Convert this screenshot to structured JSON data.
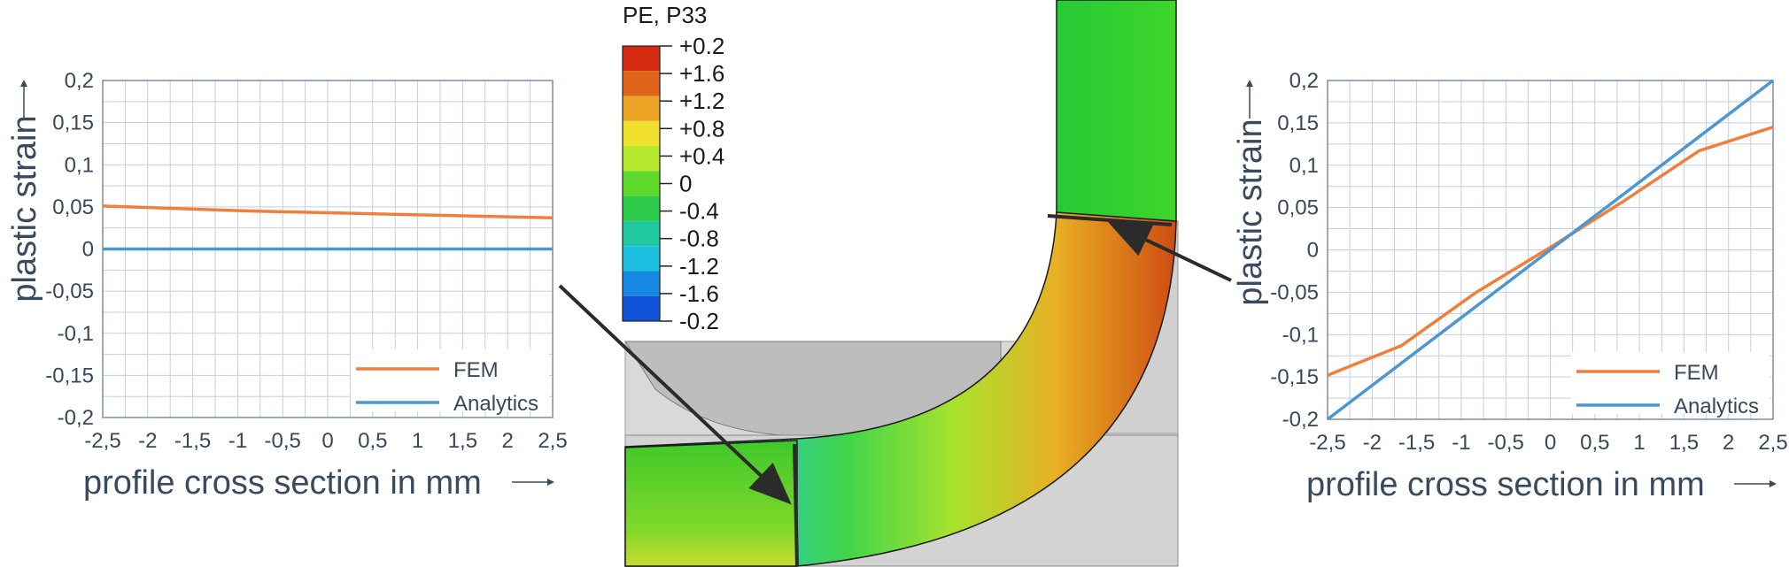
{
  "chart_data": [
    {
      "type": "line",
      "xlabel": "profile cross section in mm",
      "ylabel": "plastic strain",
      "xlim": [
        -2.5,
        2.5
      ],
      "ylim": [
        -0.2,
        0.2
      ],
      "x_ticks": [
        "-2,5",
        "-2",
        "-1,5",
        "-1",
        "-0,5",
        "0",
        "0,5",
        "1",
        "1,5",
        "2",
        "2,5"
      ],
      "y_ticks": [
        "0,2",
        "0,15",
        "0,1",
        "0,05",
        "0",
        "-0,05",
        "-0,1",
        "-0,15",
        "-0,2"
      ],
      "grid": true,
      "legend_position": "bottom-right",
      "series": [
        {
          "name": "FEM",
          "color": "#f07f3c",
          "x": [
            -2.5,
            -1.67,
            -0.83,
            0,
            0.83,
            1.67,
            2.5
          ],
          "y": [
            0.051,
            0.048,
            0.045,
            0.043,
            0.041,
            0.039,
            0.037
          ]
        },
        {
          "name": "Analytics",
          "color": "#4c97cf",
          "x": [
            -2.5,
            2.5
          ],
          "y": [
            0,
            0
          ]
        }
      ]
    },
    {
      "type": "line",
      "xlabel": "profile cross section in mm",
      "ylabel": "plastic strain",
      "xlim": [
        -2.5,
        2.5
      ],
      "ylim": [
        -0.2,
        0.2
      ],
      "x_ticks": [
        "-2,5",
        "-2",
        "-1,5",
        "-1",
        "-0,5",
        "0",
        "0,5",
        "1",
        "1,5",
        "2",
        "2,5"
      ],
      "y_ticks": [
        "0,2",
        "0,15",
        "0,1",
        "0,05",
        "0",
        "-0,05",
        "-0,1",
        "-0,15",
        "-0,2"
      ],
      "grid": true,
      "legend_position": "bottom-right",
      "series": [
        {
          "name": "FEM",
          "color": "#f07f3c",
          "x": [
            -2.5,
            -1.67,
            -0.83,
            0,
            0.83,
            1.67,
            2.5
          ],
          "y": [
            -0.148,
            -0.113,
            -0.05,
            0.003,
            0.058,
            0.117,
            0.145
          ]
        },
        {
          "name": "Analytics",
          "color": "#4c97cf",
          "x": [
            -2.5,
            2.5
          ],
          "y": [
            -0.2,
            0.2
          ]
        }
      ]
    }
  ],
  "contour": {
    "title": "PE, P33",
    "legend_labels": [
      "+0.2",
      "+1.6",
      "+1.2",
      "+0.8",
      "+0.4",
      "0",
      "-0.4",
      "-0.8",
      "-1.2",
      "-1.6",
      "-0.2"
    ],
    "legend_colors": [
      "#d42a10",
      "#e0651a",
      "#eca426",
      "#f2e02e",
      "#b6e82e",
      "#5ed82a",
      "#2ccb4c",
      "#20c9a0",
      "#1dbfe0",
      "#1788e2",
      "#0f52d8"
    ]
  }
}
